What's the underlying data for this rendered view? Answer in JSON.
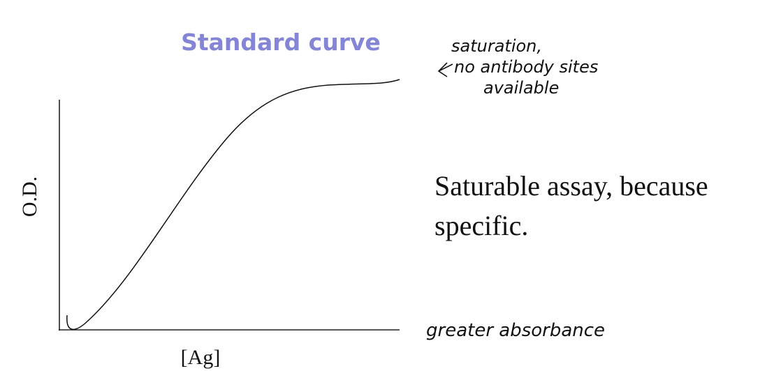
{
  "title": "Standard curve",
  "y_axis_label": "O.D.",
  "x_axis_label": "[Ag]",
  "statement": [
    "Saturable assay, because",
    "specific."
  ],
  "annotations": {
    "saturation": [
      "saturation,",
      "no antibody sites",
      "available"
    ],
    "baseline": "greater absorbance"
  }
}
